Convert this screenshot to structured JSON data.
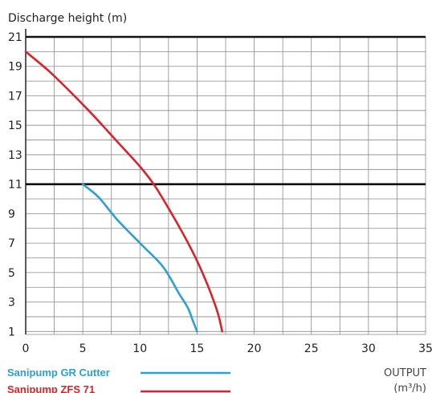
{
  "chart_data": {
    "type": "line",
    "ylabel": "Discharge height (m)",
    "xlabel": "OUTPUT",
    "xunit": "(m³/h)",
    "xlim": [
      0,
      35
    ],
    "ylim": [
      0,
      21
    ],
    "xticks": [
      "0",
      "5",
      "10",
      "15",
      "20",
      "25",
      "30",
      "35"
    ],
    "yticks": [
      "1",
      "3",
      "5",
      "7",
      "9",
      "11",
      "13",
      "15",
      "17",
      "19",
      "21"
    ],
    "grid": true,
    "reference_lines": [
      11,
      21
    ],
    "legend_position": "bottom-left",
    "series": [
      {
        "name": "Sanipump GR Cutter",
        "color": "#2a9fd8",
        "x": [
          5,
          6.4,
          8,
          10,
          11.8,
          12.6,
          13.4,
          14.2,
          14.6,
          15
        ],
        "y": [
          11,
          10.1,
          8.6,
          7,
          5.6,
          4.7,
          3.6,
          2.6,
          1.8,
          1
        ]
      },
      {
        "name": "Sanipump ZFS 71",
        "color": "#d9232a",
        "x": [
          0,
          2,
          4,
          6,
          8,
          10,
          11.2,
          12.4,
          13.8,
          15,
          16,
          16.8,
          17.2
        ],
        "y": [
          20,
          18.7,
          17.2,
          15.6,
          13.9,
          12.2,
          11,
          9.5,
          7.6,
          5.8,
          4,
          2.3,
          1
        ]
      }
    ]
  }
}
